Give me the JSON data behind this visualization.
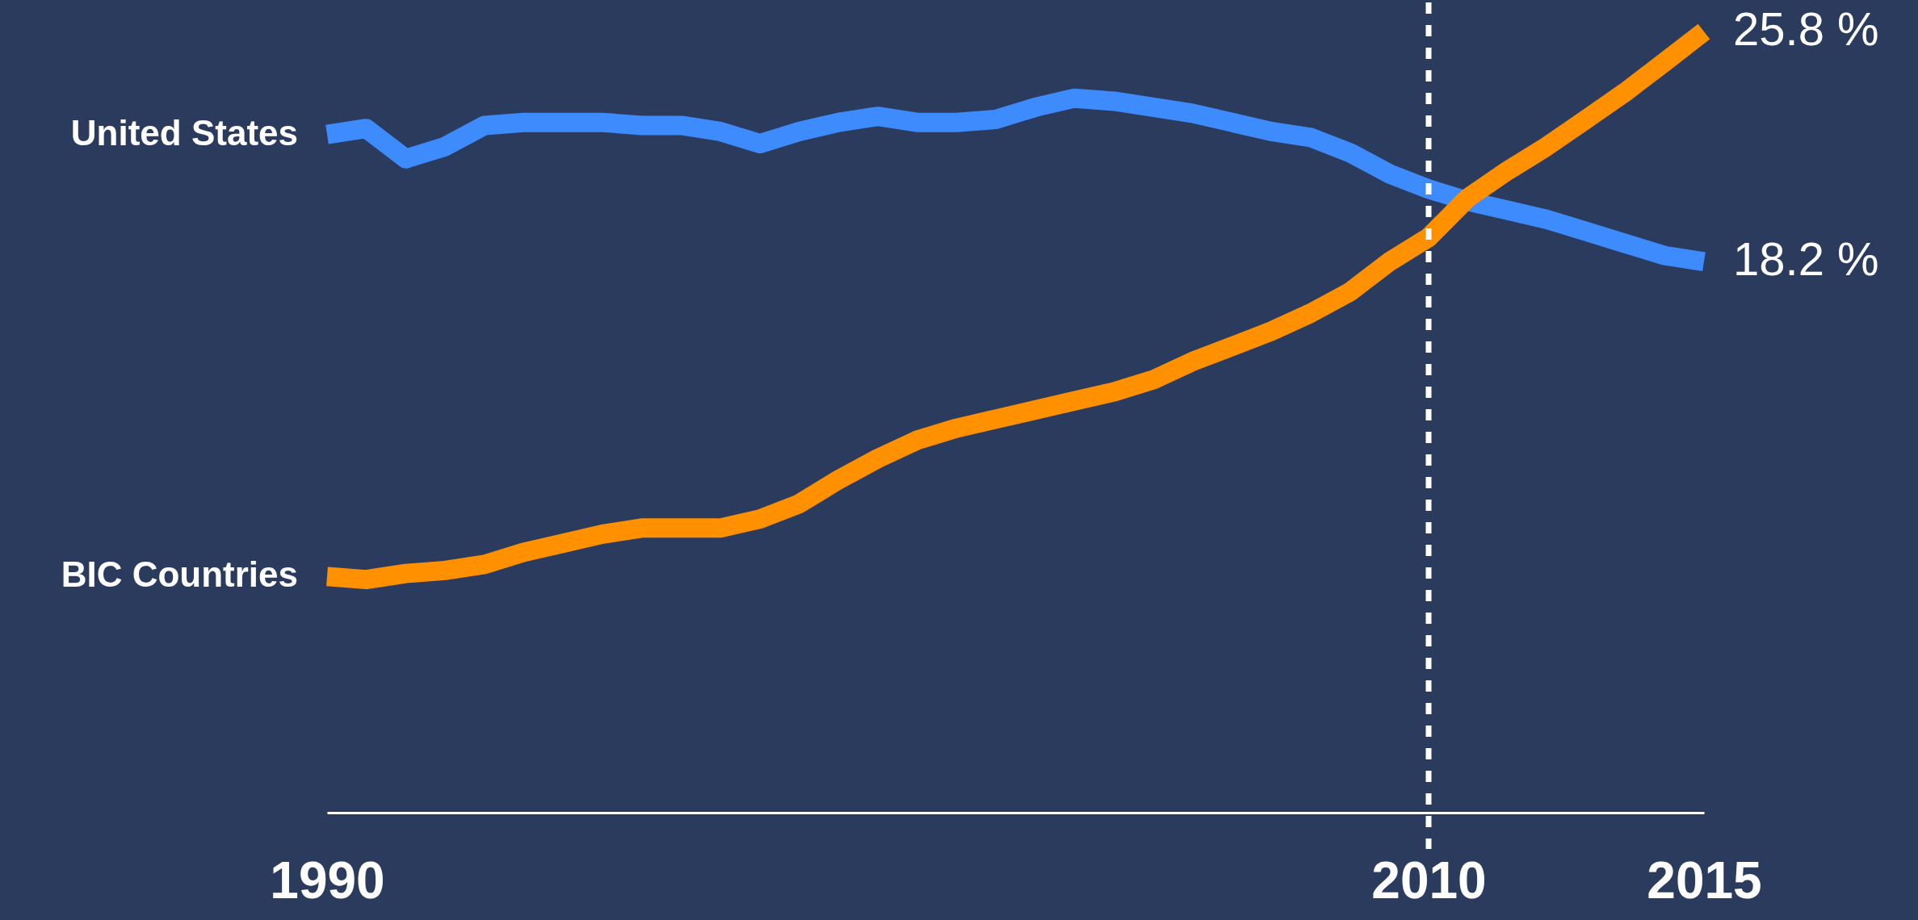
{
  "chart_data": {
    "type": "line",
    "x": [
      1990,
      1990.71,
      1991.43,
      1992.14,
      1992.86,
      1993.57,
      1994.29,
      1995,
      1995.71,
      1996.43,
      1997.14,
      1997.86,
      1998.57,
      1999.29,
      2000,
      2000.71,
      2001.43,
      2002.14,
      2002.86,
      2003.57,
      2004.29,
      2005,
      2005.71,
      2006.43,
      2007.14,
      2007.86,
      2008.57,
      2009.29,
      2010,
      2010.71,
      2011.43,
      2012.14,
      2012.86,
      2013.57,
      2014.29,
      2015
    ],
    "series": [
      {
        "name": "United States",
        "color": "#3d8bfd",
        "values": [
          22.4,
          22.6,
          21.6,
          22.0,
          22.7,
          22.8,
          22.8,
          22.8,
          22.7,
          22.7,
          22.5,
          22.1,
          22.5,
          22.8,
          23.0,
          22.8,
          22.8,
          22.9,
          23.3,
          23.6,
          23.5,
          23.3,
          23.1,
          22.8,
          22.5,
          22.3,
          21.8,
          21.1,
          20.6,
          20.2,
          19.9,
          19.6,
          19.2,
          18.8,
          18.4,
          18.2
        ],
        "value_labels": [
          null,
          null,
          null,
          null,
          null,
          null,
          null,
          null,
          null,
          null,
          null,
          null,
          null,
          null,
          null,
          null,
          null,
          null,
          null,
          null,
          null,
          null,
          null,
          null,
          null,
          null,
          null,
          null,
          null,
          null,
          null,
          null,
          null,
          null,
          null,
          "18.2 %"
        ]
      },
      {
        "name": "BIC Countries",
        "color": "#ff9000",
        "values": [
          7.8,
          7.7,
          7.9,
          8.0,
          8.2,
          8.6,
          8.9,
          9.2,
          9.4,
          9.4,
          9.4,
          9.7,
          10.2,
          11.0,
          11.7,
          12.3,
          12.7,
          13.0,
          13.3,
          13.6,
          13.9,
          14.3,
          14.9,
          15.4,
          15.9,
          16.5,
          17.2,
          18.2,
          19.0,
          20.3,
          21.2,
          22.0,
          22.9,
          23.8,
          24.8,
          25.8
        ],
        "value_labels": [
          null,
          null,
          null,
          null,
          null,
          null,
          null,
          null,
          null,
          null,
          null,
          null,
          null,
          null,
          null,
          null,
          null,
          null,
          null,
          null,
          null,
          null,
          null,
          null,
          null,
          null,
          null,
          null,
          null,
          null,
          null,
          null,
          null,
          null,
          null,
          "25.8 %"
        ]
      }
    ],
    "xlim": [
      1990,
      2015
    ],
    "xticks": [
      1990,
      2010,
      2015
    ],
    "tick_labels": "x",
    "grid": false,
    "marker": "none",
    "line_style": "solid",
    "ref_lines": [
      {
        "axis": "x",
        "value": 2010,
        "color": "#ffffff",
        "line_style": "dashed"
      }
    ]
  }
}
